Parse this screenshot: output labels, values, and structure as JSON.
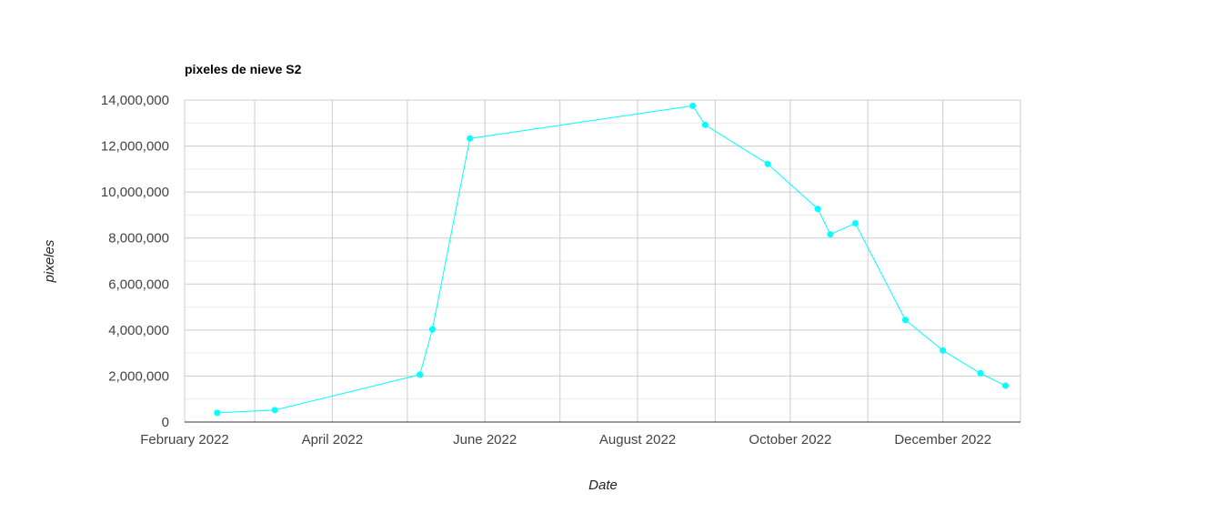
{
  "chart_data": {
    "type": "line",
    "title": "pixeles de nieve S2",
    "xlabel": "Date",
    "ylabel": "pixeles",
    "ylim": [
      0,
      14000000
    ],
    "y_ticks": [
      0,
      2000000,
      4000000,
      6000000,
      8000000,
      10000000,
      12000000,
      14000000
    ],
    "y_tick_labels": [
      "0",
      "2,000,000",
      "4,000,000",
      "6,000,000",
      "8,000,000",
      "10,000,000",
      "12,000,000",
      "14,000,000"
    ],
    "x_ticks": [
      "2022-02-01",
      "2022-04-01",
      "2022-06-01",
      "2022-08-01",
      "2022-10-01",
      "2022-12-01"
    ],
    "x_tick_labels": [
      "February 2022",
      "April 2022",
      "June 2022",
      "August 2022",
      "October 2022",
      "December 2022"
    ],
    "xlim": [
      "2022-02-01",
      "2023-01-01"
    ],
    "grid": true,
    "colors": {
      "series": "#00ffff",
      "grid_major": "#cccccc",
      "grid_minor": "#ebebeb",
      "axis": "#333333"
    },
    "series": [
      {
        "x": [
          "2022-02-14",
          "2022-03-09",
          "2022-05-06",
          "2022-05-11",
          "2022-05-26",
          "2022-08-23",
          "2022-08-28",
          "2022-09-22",
          "2022-10-12",
          "2022-10-17",
          "2022-10-27",
          "2022-11-16",
          "2022-12-01",
          "2022-12-16",
          "2022-12-26"
        ],
        "values": [
          400000,
          520000,
          2060000,
          4030000,
          12330000,
          13750000,
          12920000,
          11220000,
          9270000,
          8160000,
          8640000,
          4440000,
          3110000,
          2120000,
          1580000
        ]
      }
    ]
  }
}
